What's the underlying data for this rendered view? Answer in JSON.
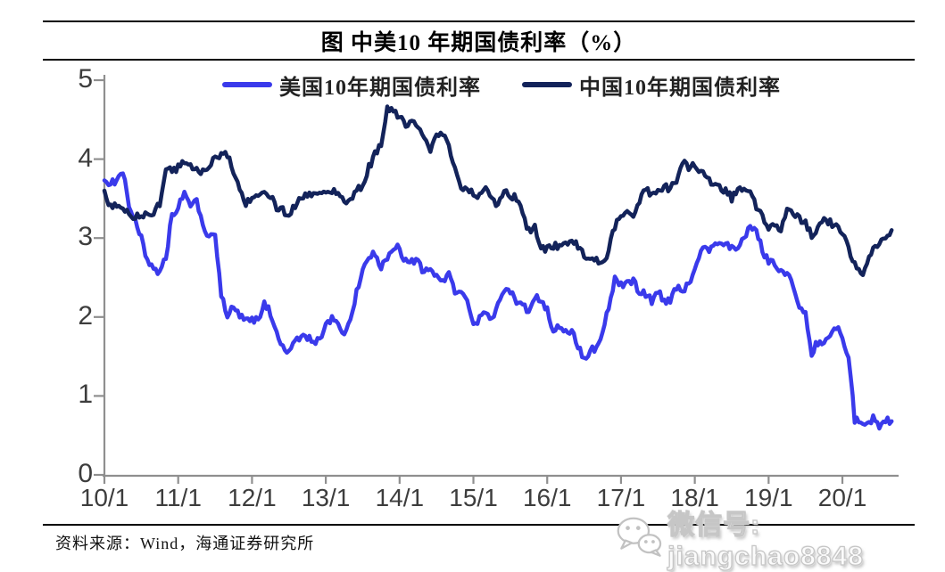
{
  "title": "图 中美10 年期国债利率（%）",
  "source_note": "资料来源：Wind，海通证券研究所",
  "watermark": {
    "icon": "wechat-icon",
    "text": "微信号: jiangchao8848"
  },
  "colors": {
    "us_line": "#3a3aeb",
    "china_line": "#13235a",
    "axis": "#8f8f8f",
    "tick_text": "#3d3d3d",
    "divider": "#000000",
    "watermark_text": "#fbfbfb"
  },
  "chart_data": {
    "type": "line",
    "title": "图 中美10 年期国债利率（%）",
    "xlabel": "",
    "ylabel": "",
    "x_unit": "monthly, 2010-01 to 2020-09",
    "x_tick_labels": [
      "10/1",
      "11/1",
      "12/1",
      "13/1",
      "14/1",
      "15/1",
      "16/1",
      "17/1",
      "18/1",
      "19/1",
      "20/1"
    ],
    "y_ticks": [
      0,
      1,
      2,
      3,
      4,
      5
    ],
    "ylim": [
      0,
      5
    ],
    "grid": false,
    "legend_position": "top-center",
    "series": [
      {
        "name": "美国10年期国债利率",
        "key": "us",
        "color": "#3a3aeb",
        "values": [
          3.73,
          3.69,
          3.73,
          3.85,
          3.42,
          3.2,
          3.01,
          2.7,
          2.65,
          2.54,
          2.76,
          3.29,
          3.39,
          3.58,
          3.41,
          3.46,
          3.17,
          3.0,
          3.0,
          2.3,
          1.98,
          2.15,
          2.01,
          1.98,
          1.97,
          1.97,
          2.17,
          2.05,
          1.8,
          1.62,
          1.53,
          1.68,
          1.72,
          1.75,
          1.65,
          1.72,
          1.91,
          1.98,
          1.96,
          1.76,
          1.93,
          2.3,
          2.58,
          2.74,
          2.81,
          2.62,
          2.72,
          2.9,
          2.86,
          2.71,
          2.72,
          2.71,
          2.56,
          2.6,
          2.54,
          2.42,
          2.53,
          2.3,
          2.33,
          2.21,
          1.88,
          1.98,
          2.04,
          1.94,
          2.2,
          2.36,
          2.32,
          2.17,
          2.17,
          2.07,
          2.26,
          2.24,
          2.09,
          1.78,
          1.89,
          1.81,
          1.81,
          1.64,
          1.45,
          1.56,
          1.63,
          1.76,
          2.14,
          2.49,
          2.43,
          2.42,
          2.48,
          2.3,
          2.3,
          2.19,
          2.32,
          2.21,
          2.2,
          2.36,
          2.35,
          2.4,
          2.58,
          2.86,
          2.84,
          2.87,
          2.98,
          2.91,
          2.89,
          2.89,
          3.0,
          3.15,
          3.12,
          2.83,
          2.71,
          2.68,
          2.57,
          2.53,
          2.4,
          2.07,
          2.06,
          1.55,
          1.68,
          1.71,
          1.81,
          1.86,
          1.76,
          1.5,
          0.7,
          0.64,
          0.66,
          0.72,
          0.6,
          0.68,
          0.68
        ]
      },
      {
        "name": "中国10年期国债利率",
        "key": "china",
        "color": "#13235a",
        "values": [
          3.6,
          3.4,
          3.42,
          3.4,
          3.3,
          3.25,
          3.3,
          3.32,
          3.3,
          3.45,
          3.85,
          3.85,
          3.9,
          3.95,
          3.9,
          3.85,
          3.83,
          3.88,
          4.02,
          4.08,
          4.05,
          3.85,
          3.6,
          3.45,
          3.5,
          3.55,
          3.55,
          3.55,
          3.4,
          3.35,
          3.3,
          3.4,
          3.55,
          3.55,
          3.58,
          3.6,
          3.6,
          3.6,
          3.58,
          3.45,
          3.45,
          3.6,
          3.65,
          3.9,
          4.05,
          4.2,
          4.65,
          4.58,
          4.55,
          4.45,
          4.5,
          4.4,
          4.25,
          4.1,
          4.3,
          4.35,
          4.15,
          3.85,
          3.65,
          3.65,
          3.55,
          3.55,
          3.6,
          3.5,
          3.4,
          3.6,
          3.55,
          3.5,
          3.3,
          3.1,
          3.15,
          2.9,
          2.85,
          2.9,
          2.9,
          2.95,
          2.95,
          2.9,
          2.8,
          2.7,
          2.72,
          2.68,
          2.85,
          3.15,
          3.25,
          3.35,
          3.3,
          3.45,
          3.65,
          3.55,
          3.6,
          3.65,
          3.62,
          3.75,
          3.95,
          3.9,
          3.95,
          3.85,
          3.75,
          3.65,
          3.65,
          3.6,
          3.5,
          3.6,
          3.65,
          3.55,
          3.4,
          3.25,
          3.15,
          3.15,
          3.1,
          3.4,
          3.3,
          3.25,
          3.18,
          3.05,
          3.12,
          3.25,
          3.2,
          3.15,
          3.05,
          2.85,
          2.65,
          2.52,
          2.7,
          2.9,
          2.95,
          3.02,
          3.1
        ]
      }
    ]
  }
}
